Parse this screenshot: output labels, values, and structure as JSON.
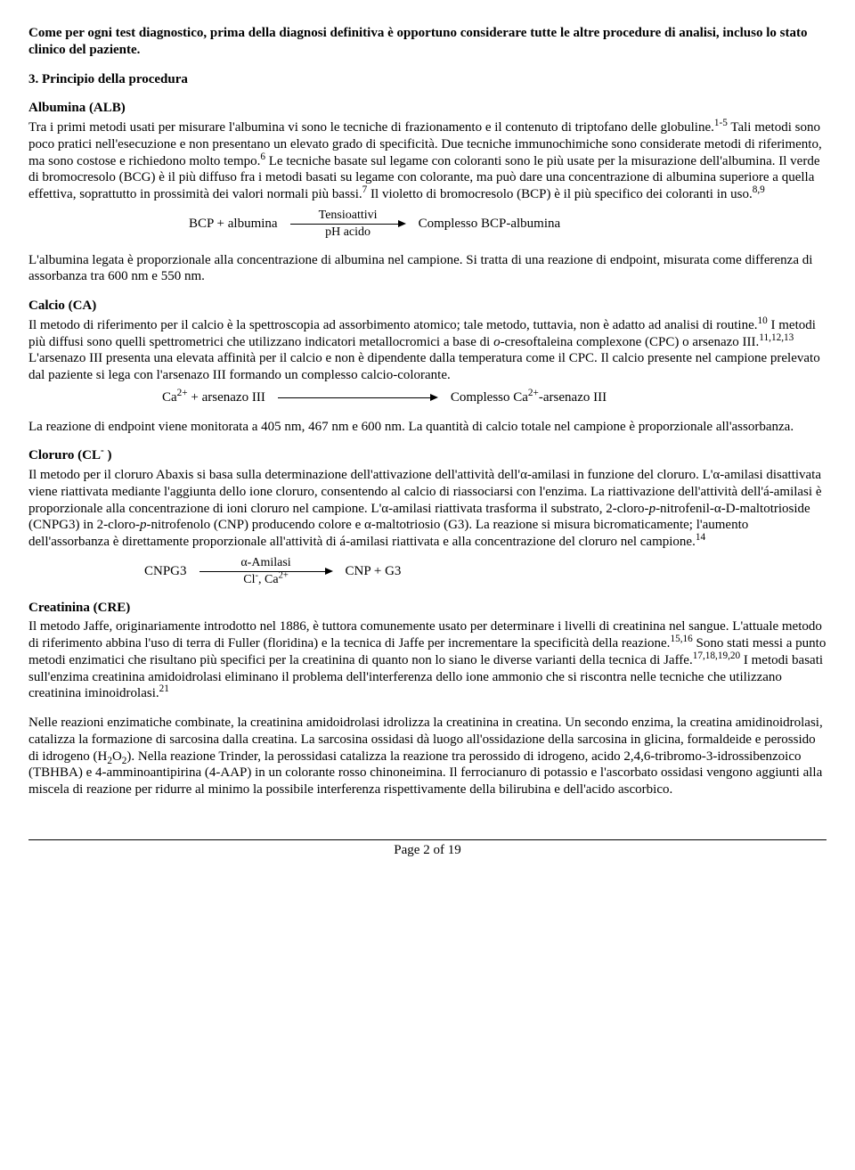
{
  "intro_bold": "Come per ogni test diagnostico, prima della diagnosi definitiva è opportuno considerare tutte le altre procedure di analisi, incluso lo stato clinico del paziente.",
  "section3_title": "3. Principio della procedura",
  "alb": {
    "heading": "Albumina (ALB)",
    "para": "Tra i primi metodi usati per misurare l'albumina vi sono le tecniche di frazionamento e il contenuto di triptofano delle globuline.<sup>1-5</sup> Tali metodi sono poco pratici nell'esecuzione e non presentano un elevato grado di specificità. Due tecniche immunochimiche sono considerate metodi di riferimento, ma sono costose e richiedono molto tempo.<sup>6</sup> Le tecniche basate sul legame con coloranti sono le più usate per la misurazione dell'albumina. Il verde di bromocresolo (BCG) è il più diffuso fra i metodi basati su legame con colorante, ma può dare una concentrazione di albumina superiore a quella effettiva, soprattutto in prossimità dei valori normali più bassi.<sup>7</sup> Il violetto di bromocresolo (BCP) è il più specifico dei coloranti in uso.<sup>8,9</sup>",
    "reaction": {
      "lhs": "BCP + albumina",
      "above": "Tensioattivi",
      "below": "pH acido",
      "rhs": "Complesso BCP-albumina"
    },
    "para2": "L'albumina legata è proporzionale alla concentrazione di albumina nel campione. Si tratta di una reazione di endpoint, misurata come differenza di assorbanza tra 600 nm e 550 nm."
  },
  "ca": {
    "heading": "Calcio (CA)",
    "para": "Il metodo di riferimento per il calcio è la spettroscopia ad assorbimento atomico; tale metodo, tuttavia, non è adatto ad analisi di routine.<sup>10</sup> I metodi più diffusi sono quelli spettrometrici che utilizzano indicatori metallocromici a base di <i>o</i>-cresoftaleina complexone (CPC) o arsenazo III.<sup>11,12,13</sup> L'arsenazo III presenta una elevata affinità per il calcio e non è dipendente dalla temperatura come il CPC. Il calcio presente nel campione prelevato dal paziente si lega con l'arsenazo III formando un complesso calcio-colorante.",
    "reaction": {
      "lhs": "Ca<sup>2+</sup> + arsenazo III",
      "above": "",
      "below": "",
      "rhs": "Complesso Ca<sup>2+</sup>-arsenazo III"
    },
    "para2": "La reazione di endpoint viene monitorata a 405 nm, 467 nm e 600 nm. La quantità di calcio totale nel campione è proporzionale all'assorbanza."
  },
  "cl": {
    "heading": "Cloruro (CL<sup>-</sup> )",
    "para": "Il metodo per il cloruro Abaxis si basa sulla determinazione dell'attivazione dell'attività dell'α-amilasi in funzione del cloruro. L'α-amilasi disattivata viene riattivata mediante l'aggiunta dello ione cloruro, consentendo al calcio di riassociarsi con l'enzima. La riattivazione dell'attività dell'á-amilasi è proporzionale alla concentrazione di ioni cloruro nel campione. L'α-amilasi riattivata trasforma il substrato, 2-cloro-<i>p</i>-nitrofenil-α-D-maltotrioside (CNPG3) in 2-cloro-<i>p</i>-nitrofenolo (CNP) producendo colore e α-maltotriosio (G3). La reazione si misura bicromaticamente; l'aumento dell'assorbanza è direttamente proporzionale all'attività di á-amilasi riattivata e alla concentrazione del cloruro nel campione.<sup>14</sup>",
    "reaction": {
      "lhs": "CNPG3",
      "above": "α-Amilasi",
      "below": "Cl<sup>-</sup>, Ca<sup>2+</sup>",
      "rhs": "CNP + G3"
    }
  },
  "cre": {
    "heading": "Creatinina (CRE)",
    "para": "Il metodo Jaffe, originariamente introdotto nel 1886, è tuttora comunemente usato per determinare i livelli di creatinina nel sangue. L'attuale metodo di riferimento abbina l'uso di terra di Fuller (floridina) e la tecnica di Jaffe per incrementare la specificità della reazione.<sup>15,16</sup> Sono stati messi a punto metodi enzimatici che risultano più specifici per la creatinina di quanto non lo siano le diverse varianti della tecnica di Jaffe.<sup>17,18,19,20</sup> I metodi basati sull'enzima creatinina amidoidrolasi eliminano il problema dell'interferenza dello ione ammonio che si riscontra nelle tecniche che utilizzano creatinina iminoidrolasi.<sup>21</sup>",
    "para2": "Nelle reazioni enzimatiche combinate, la creatinina amidoidrolasi idrolizza la creatinina in creatina. Un secondo enzima, la creatina amidinoidrolasi, catalizza la formazione di sarcosina dalla creatina. La sarcosina ossidasi dà luogo all'ossidazione della sarcosina in glicina, formaldeide e perossido di idrogeno (H<sub>2</sub>O<sub>2</sub>). Nella reazione Trinder, la perossidasi catalizza la reazione tra perossido di idrogeno, acido 2,4,6-tribromo-3-idrossibenzoico (TBHBA) e 4-amminoantipirina (4-AAP) in un colorante rosso chinoneimina. Il ferrocianuro di potassio e l'ascorbato ossidasi vengono aggiunti alla miscela di reazione per ridurre al minimo la possibile interferenza rispettivamente della bilirubina e dell'acido ascorbico."
  },
  "footer": "Page 2 of 19"
}
